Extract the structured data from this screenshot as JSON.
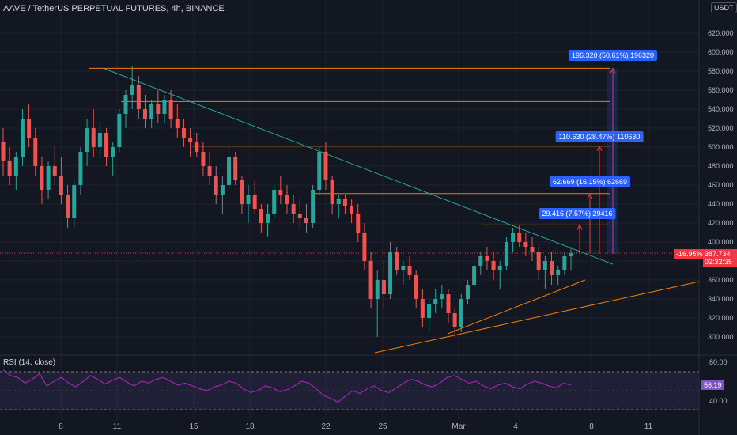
{
  "header": {
    "title": "AAVE / TetherUS PERPETUAL FUTURES, 4h, BINANCE",
    "currency": "USDT",
    "rsi_title": "RSI (14, close)"
  },
  "price_axis": {
    "ticks": [
      "620.000",
      "600.000",
      "580.000",
      "560.000",
      "540.000",
      "520.000",
      "500.000",
      "480.000",
      "460.000",
      "440.000",
      "420.000",
      "400.000",
      "360.000",
      "340.000",
      "320.000",
      "300.000"
    ],
    "current_price": "387.734",
    "countdown": "02:32:35",
    "change": "-16.95%"
  },
  "rsi_axis": {
    "ticks": [
      "80.00",
      "40.00"
    ],
    "current": "56.19"
  },
  "time_axis": {
    "ticks": [
      "8",
      "11",
      "15",
      "18",
      "22",
      "25",
      "Mar",
      "4",
      "8",
      "11"
    ]
  },
  "measure_labels": [
    "196.320 (50.61%) 196320",
    "110.630 (28.47%) 110630",
    "62.669 (16.15%) 62669",
    "29.416 (7.57%) 29416"
  ],
  "colors": {
    "background": "#131722",
    "up": "#26a69a",
    "down": "#ef5350",
    "resistance": "#f57c00",
    "trendline": "#26a69a",
    "rsi": "#9c27b0",
    "label": "#2962ff"
  },
  "chart_data": {
    "type": "candlestick",
    "timeframe": "4h",
    "ylim": [
      280,
      640
    ],
    "resistance_levels": [
      583,
      548,
      501,
      451,
      418
    ],
    "current_price": 387.734,
    "candles": [
      [
        505,
        520,
        470,
        485
      ],
      [
        485,
        500,
        460,
        470
      ],
      [
        470,
        495,
        455,
        490
      ],
      [
        490,
        540,
        480,
        530
      ],
      [
        530,
        545,
        500,
        510
      ],
      [
        510,
        520,
        470,
        480
      ],
      [
        480,
        490,
        440,
        455
      ],
      [
        455,
        485,
        445,
        480
      ],
      [
        480,
        500,
        460,
        470
      ],
      [
        470,
        490,
        440,
        450
      ],
      [
        450,
        460,
        415,
        425
      ],
      [
        425,
        465,
        415,
        460
      ],
      [
        460,
        500,
        450,
        495
      ],
      [
        495,
        530,
        480,
        520
      ],
      [
        520,
        540,
        490,
        500
      ],
      [
        500,
        525,
        490,
        515
      ],
      [
        515,
        520,
        480,
        490
      ],
      [
        490,
        505,
        470,
        500
      ],
      [
        500,
        540,
        495,
        535
      ],
      [
        535,
        560,
        520,
        555
      ],
      [
        555,
        585,
        540,
        565
      ],
      [
        565,
        575,
        530,
        540
      ],
      [
        540,
        555,
        520,
        530
      ],
      [
        530,
        550,
        520,
        545
      ],
      [
        545,
        560,
        525,
        535
      ],
      [
        535,
        555,
        525,
        550
      ],
      [
        550,
        560,
        520,
        530
      ],
      [
        530,
        545,
        510,
        520
      ],
      [
        520,
        530,
        500,
        510
      ],
      [
        510,
        520,
        490,
        505
      ],
      [
        505,
        515,
        490,
        495
      ],
      [
        495,
        505,
        470,
        480
      ],
      [
        480,
        495,
        460,
        470
      ],
      [
        470,
        480,
        440,
        450
      ],
      [
        450,
        470,
        430,
        460
      ],
      [
        460,
        500,
        455,
        490
      ],
      [
        490,
        495,
        460,
        465
      ],
      [
        465,
        470,
        430,
        440
      ],
      [
        440,
        460,
        420,
        450
      ],
      [
        450,
        465,
        430,
        435
      ],
      [
        435,
        440,
        410,
        420
      ],
      [
        420,
        440,
        405,
        430
      ],
      [
        430,
        460,
        425,
        455
      ],
      [
        455,
        470,
        440,
        450
      ],
      [
        450,
        460,
        430,
        440
      ],
      [
        440,
        450,
        420,
        430
      ],
      [
        430,
        445,
        415,
        425
      ],
      [
        425,
        440,
        410,
        420
      ],
      [
        420,
        460,
        415,
        455
      ],
      [
        455,
        500,
        450,
        495
      ],
      [
        495,
        505,
        455,
        465
      ],
      [
        465,
        470,
        430,
        440
      ],
      [
        440,
        450,
        425,
        445
      ],
      [
        445,
        450,
        430,
        438
      ],
      [
        438,
        445,
        420,
        430
      ],
      [
        430,
        440,
        400,
        410
      ],
      [
        410,
        420,
        370,
        380
      ],
      [
        380,
        390,
        330,
        340
      ],
      [
        340,
        370,
        300,
        360
      ],
      [
        360,
        380,
        330,
        345
      ],
      [
        345,
        400,
        340,
        390
      ],
      [
        390,
        395,
        365,
        370
      ],
      [
        370,
        380,
        355,
        375
      ],
      [
        375,
        385,
        360,
        365
      ],
      [
        365,
        370,
        330,
        340
      ],
      [
        340,
        350,
        310,
        320
      ],
      [
        320,
        340,
        305,
        335
      ],
      [
        335,
        350,
        325,
        340
      ],
      [
        340,
        355,
        330,
        345
      ],
      [
        345,
        350,
        315,
        325
      ],
      [
        325,
        330,
        300,
        310
      ],
      [
        310,
        345,
        305,
        340
      ],
      [
        340,
        360,
        335,
        355
      ],
      [
        355,
        380,
        350,
        375
      ],
      [
        375,
        390,
        365,
        385
      ],
      [
        385,
        395,
        370,
        380
      ],
      [
        380,
        390,
        360,
        370
      ],
      [
        370,
        380,
        350,
        375
      ],
      [
        375,
        405,
        370,
        400
      ],
      [
        400,
        415,
        390,
        410
      ],
      [
        410,
        418,
        395,
        400
      ],
      [
        400,
        410,
        385,
        395
      ],
      [
        395,
        405,
        380,
        390
      ],
      [
        390,
        395,
        360,
        370
      ],
      [
        370,
        385,
        350,
        380
      ],
      [
        380,
        390,
        355,
        365
      ],
      [
        365,
        375,
        355,
        370
      ],
      [
        370,
        390,
        365,
        385
      ],
      [
        385,
        395,
        370,
        388
      ]
    ],
    "rsi": [
      72,
      66,
      64,
      58,
      62,
      68,
      55,
      60,
      64,
      58,
      54,
      60,
      66,
      62,
      57,
      61,
      64,
      59,
      55,
      60,
      58,
      62,
      64,
      60,
      56,
      58,
      55,
      52,
      50,
      54,
      56,
      60,
      58,
      52,
      48,
      50,
      55,
      53,
      49,
      51,
      55,
      60,
      58,
      52,
      45,
      42,
      38,
      44,
      50,
      47,
      52,
      55,
      50,
      48,
      53,
      58,
      62,
      60,
      56,
      54,
      58,
      64,
      66,
      62,
      58,
      60,
      55,
      52,
      56,
      58,
      54,
      52,
      57,
      60,
      58,
      55,
      53,
      58,
      56
    ]
  }
}
